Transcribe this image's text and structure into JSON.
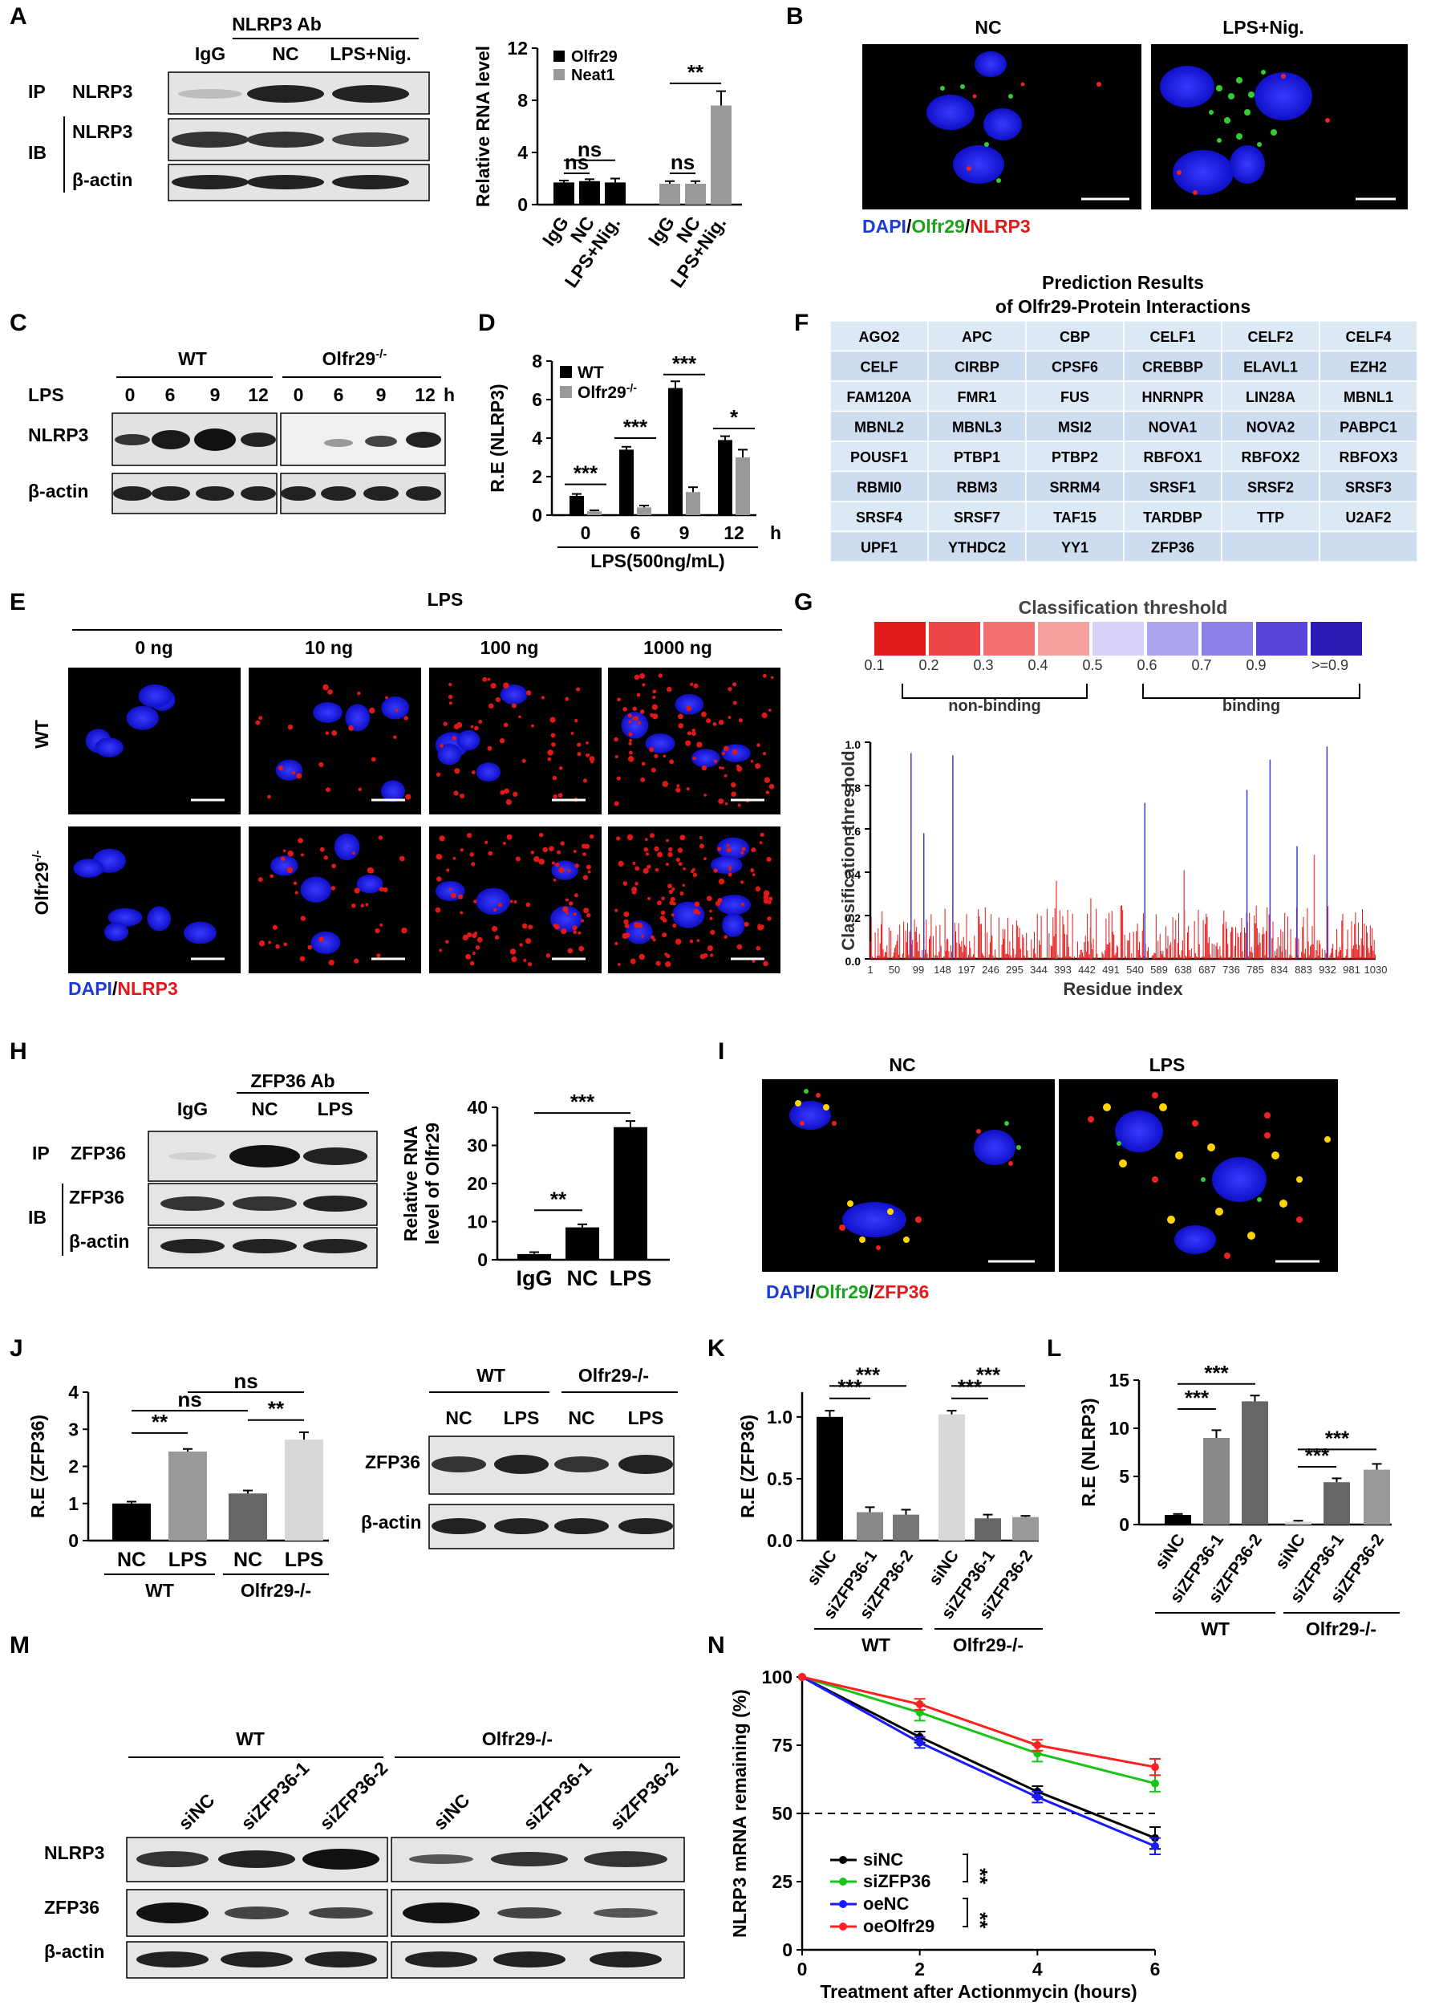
{
  "panels": {
    "A": {
      "letter": "A",
      "header": "NLRP3 Ab",
      "lanes": [
        "IgG",
        "NC",
        "LPS+Nig."
      ],
      "ip": "IP",
      "ip_target": "NLRP3",
      "ib": "IB",
      "ib_targets": [
        "NLRP3",
        "β-actin"
      ]
    },
    "B": {
      "letter": "B",
      "titles": [
        "NC",
        "LPS+Nig."
      ],
      "stain": [
        "DAPI",
        "/",
        "Olfr29",
        "/",
        "NLRP3"
      ]
    },
    "C": {
      "letter": "C",
      "groups": [
        "WT",
        "Olfr29"
      ],
      "sup": "-/-",
      "row_label": "LPS",
      "times": [
        "0",
        "6",
        "9",
        "12",
        "0",
        "6",
        "9",
        "12"
      ],
      "unit": "h",
      "targets": [
        "NLRP3",
        "β-actin"
      ]
    },
    "D": {
      "letter": "D",
      "legend": [
        "WT",
        "Olfr29"
      ],
      "sup": "-/-"
    },
    "E": {
      "letter": "E",
      "header": "LPS",
      "doses": [
        "0 ng",
        "10 ng",
        "100 ng",
        "1000 ng"
      ],
      "rows": [
        "WT",
        "Olfr29"
      ],
      "sup": "-/-",
      "stain": [
        "DAPI",
        "/",
        "NLRP3"
      ]
    },
    "F": {
      "letter": "F",
      "title_line1": "Prediction Results",
      "title_line2": "of Olfr29-Protein Interactions",
      "table": [
        [
          "AGO2",
          "APC",
          "CBP",
          "CELF1",
          "CELF2",
          "CELF4"
        ],
        [
          "CELF",
          "CIRBP",
          "CPSF6",
          "CREBBP",
          "ELAVL1",
          "EZH2"
        ],
        [
          "FAM120A",
          "FMR1",
          "FUS",
          "HNRNPR",
          "LIN28A",
          "MBNL1"
        ],
        [
          "MBNL2",
          "MBNL3",
          "MSI2",
          "NOVA1",
          "NOVA2",
          "PABPC1"
        ],
        [
          "POUSF1",
          "PTBP1",
          "PTBP2",
          "RBFOX1",
          "RBFOX2",
          "RBFOX3"
        ],
        [
          "RBMI0",
          "RBM3",
          "SRRM4",
          "SRSF1",
          "SRSF2",
          "SRSF3"
        ],
        [
          "SRSF4",
          "SRSF7",
          "TAF15",
          "TARDBP",
          "TTP",
          "U2AF2"
        ],
        [
          "UPF1",
          "YTHDC2",
          "YY1",
          "ZFP36",
          "",
          ""
        ]
      ]
    },
    "G": {
      "letter": "G",
      "scale_title": "Classification threshold",
      "scale_colors": [
        "#e11a1a",
        "#ee4646",
        "#f17070",
        "#f6a0a0",
        "#d6d2f6",
        "#aba4ef",
        "#8c7fe8",
        "#5846dc",
        "#2a1bb4"
      ],
      "scale_labels": [
        "0.1",
        "0.2",
        "0.3",
        "0.4",
        "0.5",
        "0.6",
        "0.7",
        "0.9",
        ">=0.9"
      ],
      "nonbinding": "non-binding",
      "binding": "binding"
    },
    "H": {
      "letter": "H",
      "header": "ZFP36 Ab",
      "lanes": [
        "IgG",
        "NC",
        "LPS"
      ],
      "ip": "IP",
      "ip_target": "ZFP36",
      "ib": "IB",
      "ib_targets": [
        "ZFP36",
        "β-actin"
      ]
    },
    "I": {
      "letter": "I",
      "titles": [
        "NC",
        "LPS"
      ],
      "stain": [
        "DAPI",
        "/",
        "Olfr29",
        "/",
        "ZFP36"
      ]
    },
    "J": {
      "letter": "J",
      "blot_groups": [
        "WT",
        "Olfr29-/-"
      ],
      "blot_lanes": [
        "NC",
        "LPS",
        "NC",
        "LPS"
      ],
      "blot_targets": [
        "ZFP36",
        "β-actin"
      ]
    },
    "K": {
      "letter": "K"
    },
    "L": {
      "letter": "L"
    },
    "M": {
      "letter": "M",
      "groups": [
        "WT",
        "Olfr29-/-"
      ],
      "lanes": [
        "siNC",
        "siZFP36-1",
        "siZFP36-2",
        "siNC",
        "siZFP36-1",
        "siZFP36-2"
      ],
      "targets": [
        "NLRP3",
        "ZFP36",
        "β-actin"
      ]
    },
    "N": {
      "letter": "N"
    }
  },
  "chart_data": [
    {
      "id": "A-bar",
      "type": "bar",
      "ylabel": "Relative RNA level",
      "ylim": [
        0,
        12
      ],
      "yticks": [
        0,
        4,
        8,
        12
      ],
      "categories": [
        "IgG",
        "NC",
        "LPS+Nig."
      ],
      "series": [
        {
          "name": "Olfr29",
          "color": "#000000",
          "values": [
            1.7,
            1.8,
            1.7
          ],
          "err": [
            0.15,
            0.15,
            0.3
          ]
        },
        {
          "name": "Neat1",
          "color": "#999999",
          "values": [
            1.6,
            1.6,
            7.6
          ],
          "err": [
            0.2,
            0.2,
            1.1
          ]
        }
      ],
      "significance": [
        "ns",
        "ns",
        "ns",
        "**"
      ]
    },
    {
      "id": "D-bar",
      "type": "bar",
      "ylabel": "R.E (NLRP3)",
      "xlabel": "LPS(500ng/mL)",
      "xunit": "h",
      "ylim": [
        0,
        8
      ],
      "yticks": [
        0,
        2,
        4,
        6,
        8
      ],
      "categories": [
        "0",
        "6",
        "9",
        "12"
      ],
      "series": [
        {
          "name": "WT",
          "color": "#000000",
          "values": [
            1.0,
            3.4,
            6.6,
            3.9
          ],
          "err": [
            0.1,
            0.15,
            0.35,
            0.2
          ]
        },
        {
          "name": "Olfr29-/-",
          "color": "#999999",
          "values": [
            0.2,
            0.4,
            1.2,
            3.0
          ],
          "err": [
            0.05,
            0.1,
            0.25,
            0.4
          ]
        }
      ],
      "significance": [
        "***",
        "***",
        "***",
        "*"
      ]
    },
    {
      "id": "G-line",
      "type": "bar",
      "ylabel": "Classification threshold",
      "xlabel": "Residue index",
      "ylim": [
        0,
        1.0
      ],
      "yticks": [
        "0.0",
        "0.2",
        "0.4",
        "0.6",
        "0.8",
        "1.0"
      ],
      "xticks": [
        "1",
        "50",
        "99",
        "148",
        "197",
        "246",
        "295",
        "344",
        "393",
        "442",
        "491",
        "540",
        "589",
        "638",
        "687",
        "736",
        "785",
        "834",
        "883",
        "932",
        "981",
        "1030"
      ],
      "peaks": [
        {
          "x": 84,
          "y": 0.95
        },
        {
          "x": 169,
          "y": 0.94
        },
        {
          "x": 560,
          "y": 0.72
        },
        {
          "x": 768,
          "y": 0.78
        },
        {
          "x": 815,
          "y": 0.92
        },
        {
          "x": 931,
          "y": 0.98
        },
        {
          "x": 110,
          "y": 0.58
        },
        {
          "x": 380,
          "y": 0.36
        },
        {
          "x": 870,
          "y": 0.52
        },
        {
          "x": 905,
          "y": 0.48
        },
        {
          "x": 450,
          "y": 0.28
        },
        {
          "x": 640,
          "y": 0.41
        }
      ]
    },
    {
      "id": "H-bar",
      "type": "bar",
      "ylabel_lines": [
        "Relative RNA",
        "level of Olfr29"
      ],
      "ylim": [
        0,
        40
      ],
      "yticks": [
        0,
        10,
        20,
        30,
        40
      ],
      "categories": [
        "IgG",
        "NC",
        "LPS"
      ],
      "series": [
        {
          "name": "",
          "color": "#000000",
          "values": [
            1.5,
            8.5,
            34.8
          ],
          "err": [
            0.5,
            0.8,
            1.6
          ]
        }
      ],
      "significance": [
        "**",
        "***"
      ]
    },
    {
      "id": "J-bar",
      "type": "bar",
      "ylabel": "R.E (ZFP36)",
      "ylim": [
        0,
        4
      ],
      "yticks": [
        0,
        1,
        2,
        3,
        4
      ],
      "categories": [
        "NC",
        "LPS",
        "NC",
        "LPS"
      ],
      "groups": [
        "WT",
        "Olfr29-/-"
      ],
      "values": [
        1.0,
        2.4,
        1.27,
        2.72
      ],
      "err": [
        0.05,
        0.07,
        0.08,
        0.2
      ],
      "colors": [
        "#000000",
        "#999999",
        "#666666",
        "#d8d8d8"
      ],
      "significance": [
        "**",
        "ns",
        "**",
        "ns"
      ]
    },
    {
      "id": "K-bar",
      "type": "bar",
      "ylabel": "R.E (ZFP36)",
      "ylim": [
        0,
        1.2
      ],
      "yticks": [
        "0.0",
        "0.5",
        "1.0"
      ],
      "categories": [
        "siNC",
        "siZFP36-1",
        "siZFP36-2",
        "siNC",
        "siZFP36-1",
        "siZFP36-2"
      ],
      "groups": [
        "WT",
        "Olfr29-/-"
      ],
      "values": [
        1.0,
        0.23,
        0.21,
        1.02,
        0.18,
        0.19
      ],
      "err": [
        0.05,
        0.04,
        0.04,
        0.03,
        0.03,
        0.01
      ],
      "colors": [
        "#000000",
        "#888888",
        "#777777",
        "#d8d8d8",
        "#666666",
        "#999999"
      ],
      "significance": [
        "***",
        "***",
        "***",
        "***"
      ]
    },
    {
      "id": "L-bar",
      "type": "bar",
      "ylabel": "R.E (NLRP3)",
      "ylim": [
        0,
        15
      ],
      "yticks": [
        0,
        5,
        10,
        15
      ],
      "categories": [
        "siNC",
        "siZFP36-1",
        "siZFP36-2",
        "siNC",
        "siZFP36-1",
        "siZFP36-2"
      ],
      "groups": [
        "WT",
        "Olfr29-/-"
      ],
      "values": [
        1.0,
        9.0,
        12.8,
        0.3,
        4.4,
        5.7
      ],
      "err": [
        0.1,
        0.8,
        0.6,
        0.1,
        0.4,
        0.6
      ],
      "colors": [
        "#000000",
        "#888888",
        "#666666",
        "#d8d8d8",
        "#666666",
        "#999999"
      ],
      "significance": [
        "***",
        "***",
        "***",
        "***"
      ]
    },
    {
      "id": "N-line",
      "type": "line",
      "ylabel": "NLRP3 mRNA remaining (%)",
      "xlabel": "Treatment after Actionmycin (hours)",
      "ylim": [
        0,
        100
      ],
      "yticks": [
        0,
        25,
        50,
        75,
        100
      ],
      "xlim": [
        0,
        6
      ],
      "xticks": [
        0,
        2,
        4,
        6
      ],
      "x": [
        0,
        2,
        4,
        6
      ],
      "series": [
        {
          "name": "siNC",
          "color": "#000000",
          "values": [
            100,
            78,
            58,
            41
          ],
          "err": [
            0,
            2,
            2,
            4
          ]
        },
        {
          "name": "siZFP36",
          "color": "#18c418",
          "values": [
            100,
            87,
            72,
            61
          ],
          "err": [
            0,
            3,
            3,
            3
          ]
        },
        {
          "name": "oeNC",
          "color": "#1a1aff",
          "values": [
            100,
            76,
            56,
            38
          ],
          "err": [
            0,
            2,
            2,
            3
          ]
        },
        {
          "name": "oeOlfr29",
          "color": "#ff2020",
          "values": [
            100,
            90,
            75,
            67
          ],
          "err": [
            0,
            2,
            2,
            3
          ]
        }
      ],
      "reference_line": 50,
      "significance": [
        "**",
        "**"
      ]
    }
  ]
}
